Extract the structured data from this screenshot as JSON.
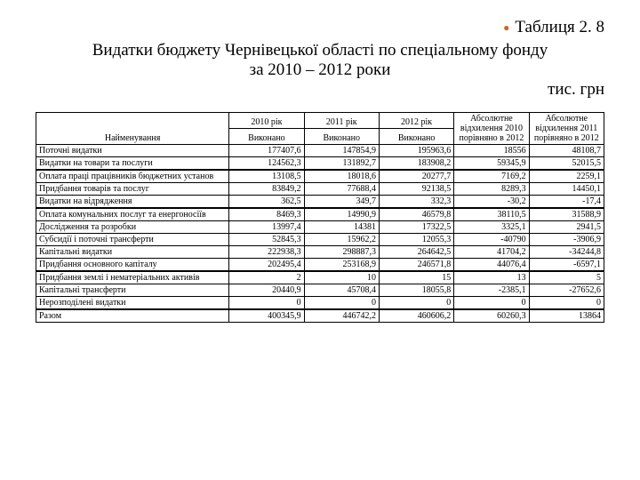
{
  "title": {
    "line1": "Таблиця 2. 8",
    "line2": "Видатки бюджету Чернівецької області по спеціальному фонду",
    "line3": "за 2010 – 2012 роки",
    "units": "тис. грн"
  },
  "headers": {
    "h2010": "2010 рік",
    "h2011": "2011 рік",
    "h2012": "2012 рік",
    "dev2010": "Абсолютне відхилення 2010 порівняно в 2012",
    "dev2011": "Абсолютне відхилення 2011 порівняно в 2012",
    "name": "Найменування",
    "exec": "Виконано"
  },
  "rows": {
    "r0": {
      "name": "Поточні видатки",
      "c1": "177407,6",
      "c2": "147854,9",
      "c3": "195963,6",
      "c4": "18556",
      "c5": "48108,7"
    },
    "r1": {
      "name": "Видатки на товари та послуги",
      "c1": "124562,3",
      "c2": "131892,7",
      "c3": "183908,2",
      "c4": "59345,9",
      "c5": "52015,5"
    },
    "r2": {
      "name": "Оплата праці працівників бюджетних установ",
      "c1": "13108,5",
      "c2": "18018,6",
      "c3": "20277,7",
      "c4": "7169,2",
      "c5": "2259,1"
    },
    "r3": {
      "name": "Придбання товарів та послуг",
      "c1": "83849,2",
      "c2": "77688,4",
      "c3": "92138,5",
      "c4": "8289,3",
      "c5": "14450,1"
    },
    "r4": {
      "name": "Видатки на відрядження",
      "c1": "362,5",
      "c2": "349,7",
      "c3": "332,3",
      "c4": "-30,2",
      "c5": "-17,4"
    },
    "r5": {
      "name": "Оплата комунальних послуг та енергоносіїв",
      "c1": "8469,3",
      "c2": "14990,9",
      "c3": "46579,8",
      "c4": "38110,5",
      "c5": "31588,9"
    },
    "r6": {
      "name": "Дослідження та розробки",
      "c1": "13997,4",
      "c2": "14381",
      "c3": "17322,5",
      "c4": "3325,1",
      "c5": "2941,5"
    },
    "r7": {
      "name": "Субсидії і поточні трансферти",
      "c1": "52845,3",
      "c2": "15962,2",
      "c3": "12055,3",
      "c4": "-40790",
      "c5": "-3906,9"
    },
    "r8": {
      "name": "Капітальні видатки",
      "c1": "222938,3",
      "c2": "298887,3",
      "c3": "264642,5",
      "c4": "41704,2",
      "c5": "-34244,8"
    },
    "r9": {
      "name": "Придбання основного капіталу",
      "c1": "202495,4",
      "c2": "253168,9",
      "c3": "246571,8",
      "c4": "44076,4",
      "c5": "-6597,1"
    },
    "r10": {
      "name": "Придбання землі і нематеріальних активів",
      "c1": "2",
      "c2": "10",
      "c3": "15",
      "c4": "13",
      "c5": "5"
    },
    "r11": {
      "name": "Капітальні трансферти",
      "c1": "20440,9",
      "c2": "45708,4",
      "c3": "18055,8",
      "c4": "-2385,1",
      "c5": "-27652,6"
    },
    "r12": {
      "name": "Нерозподілені видатки",
      "c1": "0",
      "c2": "0",
      "c3": "0",
      "c4": "0",
      "c5": "0"
    },
    "r13": {
      "name": "Разом",
      "c1": "400345,9",
      "c2": "446742,2",
      "c3": "460606,2",
      "c4": "60260,3",
      "c5": "13864"
    }
  }
}
